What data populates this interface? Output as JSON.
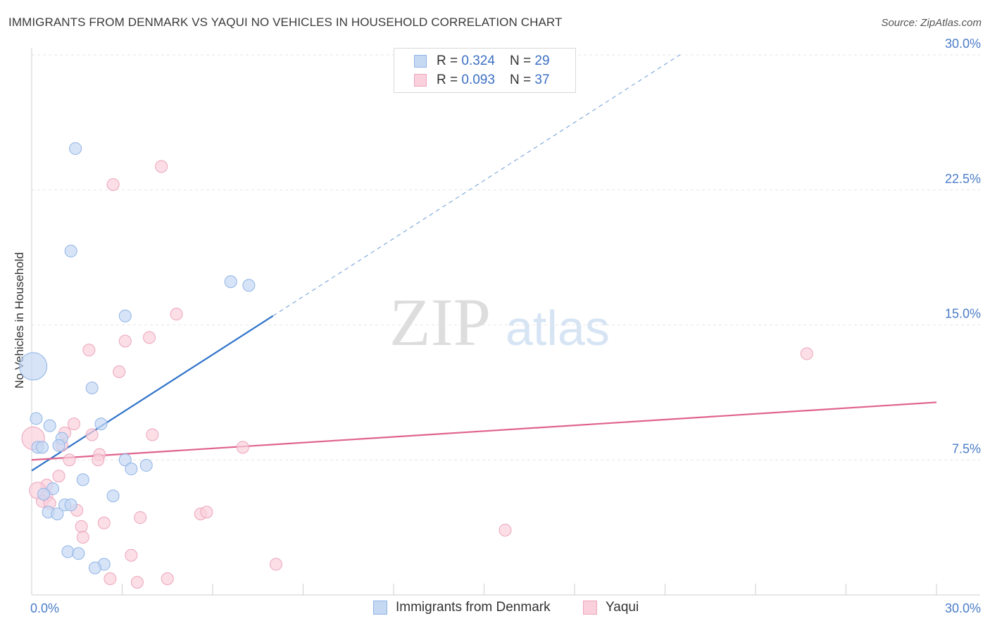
{
  "title": "IMMIGRANTS FROM DENMARK VS YAQUI NO VEHICLES IN HOUSEHOLD CORRELATION CHART",
  "source": "Source: ZipAtlas.com",
  "watermark": {
    "zip": "ZIP",
    "atlas": "atlas"
  },
  "legend": {
    "rows": [
      {
        "r_label": "R = ",
        "r_value": "0.324",
        "n_label": "N = ",
        "n_value": "29"
      },
      {
        "r_label": "R = ",
        "r_value": "0.093",
        "n_label": "N = ",
        "n_value": "37"
      }
    ]
  },
  "colors": {
    "denmark_fill": "#c6d9f3",
    "denmark_stroke": "#8fb4e6",
    "denmark_line": "#2f73c9",
    "yaqui_fill": "#f9d0dc",
    "yaqui_stroke": "#eda5bd",
    "yaqui_line": "#e0638d",
    "grid": "#e6e6e6",
    "axis_text": "#4a7cc9"
  },
  "chart_data": {
    "type": "scatter",
    "title": "IMMIGRANTS FROM DENMARK VS YAQUI NO VEHICLES IN HOUSEHOLD CORRELATION CHART",
    "xlabel": "",
    "ylabel": "No Vehicles in Household",
    "xlim": [
      0,
      30
    ],
    "ylim": [
      0,
      30
    ],
    "x_ticks": [
      "0.0%",
      "30.0%"
    ],
    "y_ticks": [
      {
        "value": 7.5,
        "label": "7.5%"
      },
      {
        "value": 15.0,
        "label": "15.0%"
      },
      {
        "value": 22.5,
        "label": "22.5%"
      },
      {
        "value": 30.0,
        "label": "30.0%"
      }
    ],
    "grid": true,
    "legend_position": "top-center",
    "series": [
      {
        "name": "Immigrants from Denmark",
        "R": 0.324,
        "N": 29,
        "trend": {
          "x0": 0.0,
          "y0": 6.9,
          "x1": 8.0,
          "y1": 15.5,
          "dash_to_x": 21.5
        },
        "points": [
          {
            "x": 1.45,
            "y": 24.8,
            "s": 1
          },
          {
            "x": 1.3,
            "y": 19.1,
            "s": 1
          },
          {
            "x": 6.6,
            "y": 17.4,
            "s": 1
          },
          {
            "x": 7.2,
            "y": 17.2,
            "s": 1
          },
          {
            "x": 3.1,
            "y": 15.5,
            "s": 1
          },
          {
            "x": 0.05,
            "y": 12.7,
            "s": 2.3
          },
          {
            "x": 2.0,
            "y": 11.5,
            "s": 1
          },
          {
            "x": 0.15,
            "y": 9.8,
            "s": 1
          },
          {
            "x": 0.6,
            "y": 9.4,
            "s": 1
          },
          {
            "x": 2.3,
            "y": 9.5,
            "s": 1
          },
          {
            "x": 1.0,
            "y": 8.7,
            "s": 1
          },
          {
            "x": 0.9,
            "y": 8.3,
            "s": 1
          },
          {
            "x": 0.2,
            "y": 8.2,
            "s": 1
          },
          {
            "x": 0.35,
            "y": 8.2,
            "s": 1
          },
          {
            "x": 3.1,
            "y": 7.5,
            "s": 1
          },
          {
            "x": 3.3,
            "y": 7.0,
            "s": 1
          },
          {
            "x": 3.8,
            "y": 7.2,
            "s": 1
          },
          {
            "x": 1.7,
            "y": 6.4,
            "s": 1
          },
          {
            "x": 0.7,
            "y": 5.9,
            "s": 1
          },
          {
            "x": 0.4,
            "y": 5.6,
            "s": 1
          },
          {
            "x": 2.7,
            "y": 5.5,
            "s": 1
          },
          {
            "x": 1.1,
            "y": 5.0,
            "s": 1
          },
          {
            "x": 1.3,
            "y": 5.0,
            "s": 1
          },
          {
            "x": 0.55,
            "y": 4.6,
            "s": 1
          },
          {
            "x": 0.85,
            "y": 4.5,
            "s": 1
          },
          {
            "x": 1.2,
            "y": 2.4,
            "s": 1
          },
          {
            "x": 1.55,
            "y": 2.3,
            "s": 1
          },
          {
            "x": 2.4,
            "y": 1.7,
            "s": 1
          },
          {
            "x": 2.1,
            "y": 1.5,
            "s": 1
          }
        ]
      },
      {
        "name": "Yaqui",
        "R": 0.093,
        "N": 37,
        "trend": {
          "x0": 0.0,
          "y0": 7.5,
          "x1": 30.0,
          "y1": 10.7
        },
        "points": [
          {
            "x": 4.3,
            "y": 23.8,
            "s": 1
          },
          {
            "x": 2.7,
            "y": 22.8,
            "s": 1
          },
          {
            "x": 4.8,
            "y": 15.6,
            "s": 1
          },
          {
            "x": 3.9,
            "y": 14.3,
            "s": 1
          },
          {
            "x": 3.1,
            "y": 14.1,
            "s": 1
          },
          {
            "x": 1.9,
            "y": 13.6,
            "s": 1
          },
          {
            "x": 25.7,
            "y": 13.4,
            "s": 1
          },
          {
            "x": 2.9,
            "y": 12.4,
            "s": 1
          },
          {
            "x": 0.05,
            "y": 8.7,
            "s": 1.9
          },
          {
            "x": 1.4,
            "y": 9.5,
            "s": 1
          },
          {
            "x": 1.1,
            "y": 9.0,
            "s": 1
          },
          {
            "x": 2.0,
            "y": 8.9,
            "s": 1
          },
          {
            "x": 4.0,
            "y": 8.9,
            "s": 1
          },
          {
            "x": 1.0,
            "y": 8.3,
            "s": 1
          },
          {
            "x": 7.0,
            "y": 8.2,
            "s": 1
          },
          {
            "x": 2.25,
            "y": 7.8,
            "s": 1
          },
          {
            "x": 2.2,
            "y": 7.5,
            "s": 1
          },
          {
            "x": 1.25,
            "y": 7.5,
            "s": 1
          },
          {
            "x": 0.9,
            "y": 6.6,
            "s": 1
          },
          {
            "x": 0.5,
            "y": 6.1,
            "s": 1
          },
          {
            "x": 0.2,
            "y": 5.8,
            "s": 1.4
          },
          {
            "x": 0.5,
            "y": 5.5,
            "s": 1
          },
          {
            "x": 0.35,
            "y": 5.2,
            "s": 1
          },
          {
            "x": 0.6,
            "y": 5.1,
            "s": 1
          },
          {
            "x": 1.5,
            "y": 4.7,
            "s": 1
          },
          {
            "x": 5.6,
            "y": 4.5,
            "s": 1
          },
          {
            "x": 5.8,
            "y": 4.6,
            "s": 1
          },
          {
            "x": 3.6,
            "y": 4.3,
            "s": 1
          },
          {
            "x": 2.4,
            "y": 4.0,
            "s": 1
          },
          {
            "x": 1.65,
            "y": 3.8,
            "s": 1
          },
          {
            "x": 15.7,
            "y": 3.6,
            "s": 1
          },
          {
            "x": 1.7,
            "y": 3.2,
            "s": 1
          },
          {
            "x": 3.3,
            "y": 2.2,
            "s": 1
          },
          {
            "x": 8.1,
            "y": 1.7,
            "s": 1
          },
          {
            "x": 2.6,
            "y": 0.9,
            "s": 1
          },
          {
            "x": 4.5,
            "y": 0.9,
            "s": 1
          },
          {
            "x": 3.5,
            "y": 0.7,
            "s": 1
          }
        ]
      }
    ]
  }
}
